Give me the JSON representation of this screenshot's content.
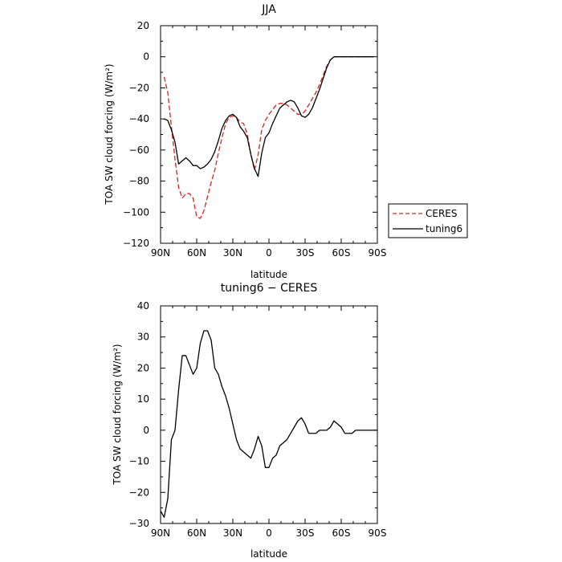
{
  "chart_data": [
    {
      "type": "line",
      "title": "JJA",
      "xlabel": "latitude",
      "ylabel": "TOA SW cloud forcing (W/m²)",
      "xlim": [
        90,
        -90
      ],
      "ylim": [
        -120,
        20
      ],
      "xticks": [
        90,
        60,
        30,
        0,
        -30,
        -60,
        -90
      ],
      "xtick_labels": [
        "90N",
        "60N",
        "30N",
        "0",
        "30S",
        "60S",
        "90S"
      ],
      "yticks": [
        -120,
        -100,
        -80,
        -60,
        -40,
        -20,
        0,
        20
      ],
      "ytick_labels": [
        "−120",
        "−100",
        "−80",
        "−60",
        "−40",
        "−20",
        "0",
        "20"
      ],
      "legend": "right",
      "grid": false,
      "series": [
        {
          "name": "CERES",
          "color": "#e0201b",
          "dash": "dashed",
          "x": [
            87,
            84,
            81,
            78,
            75,
            72,
            69,
            66,
            63,
            60,
            57,
            54,
            51,
            48,
            45,
            42,
            39,
            36,
            33,
            30,
            27,
            24,
            21,
            18,
            15,
            12,
            9,
            6,
            3,
            0,
            -3,
            -6,
            -9,
            -12,
            -15,
            -18,
            -21,
            -24,
            -27,
            -30,
            -33,
            -36,
            -39,
            -42,
            -45,
            -48,
            -51,
            -54,
            -57,
            -60,
            -63,
            -66,
            -69,
            -72,
            -75,
            -78,
            -81,
            -84,
            -87
          ],
          "y": [
            -13,
            -23,
            -45,
            -66,
            -84,
            -91,
            -88,
            -88,
            -91,
            -103,
            -104,
            -99,
            -90,
            -81,
            -73,
            -62,
            -52,
            -43,
            -39,
            -38,
            -39,
            -42,
            -43,
            -50,
            -63,
            -73,
            -63,
            -47,
            -41,
            -37,
            -34,
            -31,
            -30,
            -30,
            -31,
            -33,
            -35,
            -37,
            -37,
            -35,
            -31,
            -27,
            -23,
            -18,
            -12,
            -6,
            -2,
            0,
            0,
            0,
            0,
            0,
            0,
            0,
            0,
            0,
            0,
            0,
            0
          ]
        },
        {
          "name": "tuning6",
          "color": "#000000",
          "dash": "solid",
          "x": [
            87,
            84,
            81,
            78,
            75,
            72,
            69,
            66,
            63,
            60,
            57,
            54,
            51,
            48,
            45,
            42,
            39,
            36,
            33,
            30,
            27,
            24,
            21,
            18,
            15,
            12,
            9,
            6,
            3,
            0,
            -3,
            -6,
            -9,
            -12,
            -15,
            -18,
            -21,
            -24,
            -27,
            -30,
            -33,
            -36,
            -39,
            -42,
            -45,
            -48,
            -51,
            -54,
            -57,
            -60,
            -63,
            -66,
            -69,
            -72,
            -75,
            -78,
            -81,
            -84,
            -87
          ],
          "y": [
            -40,
            -41,
            -47,
            -55,
            -69,
            -67,
            -65,
            -67,
            -70,
            -70,
            -72,
            -71,
            -69,
            -66,
            -61,
            -54,
            -46,
            -41,
            -38,
            -37,
            -39,
            -45,
            -48,
            -52,
            -63,
            -72,
            -77,
            -62,
            -52,
            -49,
            -43,
            -38,
            -33,
            -31,
            -29,
            -28,
            -29,
            -33,
            -38,
            -39,
            -37,
            -33,
            -27,
            -21,
            -14,
            -7,
            -2,
            0,
            0,
            0,
            0,
            0,
            0,
            0,
            0,
            0,
            0,
            0,
            0
          ]
        }
      ]
    },
    {
      "type": "line",
      "title": "tuning6 − CERES",
      "xlabel": "latitude",
      "ylabel": "TOA SW cloud forcing (W/m²)",
      "xlim": [
        90,
        -90
      ],
      "ylim": [
        -30,
        40
      ],
      "xticks": [
        90,
        60,
        30,
        0,
        -30,
        -60,
        -90
      ],
      "xtick_labels": [
        "90N",
        "60N",
        "30N",
        "0",
        "30S",
        "60S",
        "90S"
      ],
      "yticks": [
        -30,
        -20,
        -10,
        0,
        10,
        20,
        30,
        40
      ],
      "ytick_labels": [
        "−30",
        "−20",
        "−10",
        "0",
        "10",
        "20",
        "30",
        "40"
      ],
      "grid": false,
      "series": [
        {
          "color": "#000000",
          "dash": "solid",
          "x": [
            90,
            87,
            84,
            81,
            78,
            75,
            72,
            69,
            66,
            63,
            60,
            57,
            54,
            51,
            48,
            45,
            42,
            39,
            36,
            33,
            30,
            27,
            24,
            21,
            18,
            15,
            12,
            9,
            6,
            3,
            0,
            -3,
            -6,
            -9,
            -12,
            -15,
            -18,
            -21,
            -24,
            -27,
            -30,
            -33,
            -36,
            -39,
            -42,
            -45,
            -48,
            -51,
            -54,
            -57,
            -60,
            -63,
            -66,
            -69,
            -72,
            -75,
            -78,
            -81,
            -84,
            -87,
            -90
          ],
          "y": [
            -26,
            -28,
            -22,
            -3,
            0,
            13,
            24,
            24,
            21,
            18,
            20,
            28,
            32,
            32,
            29,
            20,
            18,
            14,
            11,
            7,
            2,
            -3,
            -6,
            -7,
            -8,
            -9,
            -6,
            -2,
            -5,
            -12,
            -12,
            -9,
            -8,
            -5,
            -4,
            -3,
            -1,
            1,
            3,
            4,
            2,
            -1,
            -1,
            -1,
            0,
            0,
            0,
            1,
            3,
            2,
            1,
            -1,
            -1,
            -1,
            0,
            0,
            0,
            0,
            0,
            0,
            0
          ]
        }
      ]
    }
  ]
}
